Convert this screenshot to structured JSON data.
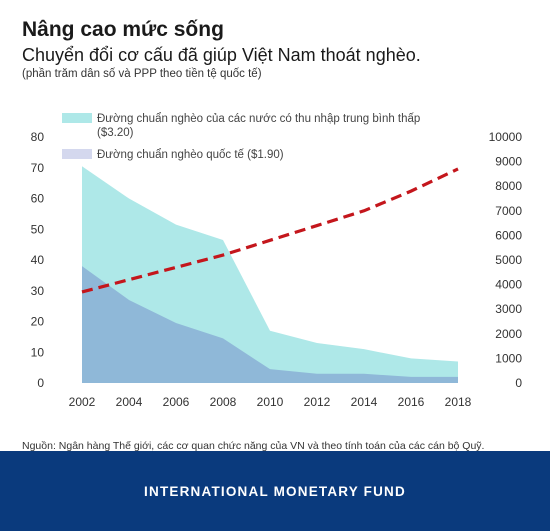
{
  "header": {
    "title": "Nâng cao mức sống",
    "subtitle": "Chuyển đổi cơ cấu đã giúp Việt Nam thoát nghèo.",
    "note": "(phần trăm dân số và PPP theo tiền tệ quốc tế)"
  },
  "source": "Nguồn: Ngân hàng Thế giới, các cơ quan chức năng của VN và theo tính toán của các cán bộ Quỹ.",
  "footer": {
    "brand": "INTERNATIONAL MONETARY FUND"
  },
  "chart_data": {
    "type": "area",
    "x": [
      2002,
      2004,
      2006,
      2008,
      2010,
      2012,
      2014,
      2016,
      2018
    ],
    "x_ticks": [
      "2002",
      "2004",
      "2006",
      "2008",
      "2010",
      "2012",
      "2014",
      "2016",
      "2018"
    ],
    "ylim": [
      0,
      80
    ],
    "y_ticks": [
      "0",
      "10",
      "20",
      "30",
      "40",
      "50",
      "60",
      "70",
      "80"
    ],
    "y2lim": [
      0,
      10000
    ],
    "y2_ticks": [
      "0",
      "1000",
      "2000",
      "3000",
      "4000",
      "5000",
      "6000",
      "7000",
      "8000",
      "9000",
      "10000"
    ],
    "grid": false,
    "legend_position": "top",
    "series": [
      {
        "name": "Đường chuẩn nghèo của các nước có thu nhập trung bình thấp",
        "name_suffix": "($3.20)",
        "type": "area",
        "axis": "left",
        "color": "#aee8e8",
        "values": [
          70.5,
          60,
          51.5,
          46.5,
          17,
          13,
          11,
          8,
          7
        ]
      },
      {
        "name": "Đường chuẩn nghèo quốc tế ($1.90)",
        "type": "area",
        "axis": "left",
        "color": "#8fb8d8",
        "values": [
          38,
          27,
          19.5,
          14.5,
          4.5,
          3,
          3,
          2,
          2
        ]
      },
      {
        "type": "line",
        "axis": "right",
        "style": "dashed",
        "color": "#c4161c",
        "values": [
          3700,
          4200,
          4700,
          5200,
          5800,
          6400,
          7000,
          7800,
          8700
        ]
      }
    ]
  }
}
